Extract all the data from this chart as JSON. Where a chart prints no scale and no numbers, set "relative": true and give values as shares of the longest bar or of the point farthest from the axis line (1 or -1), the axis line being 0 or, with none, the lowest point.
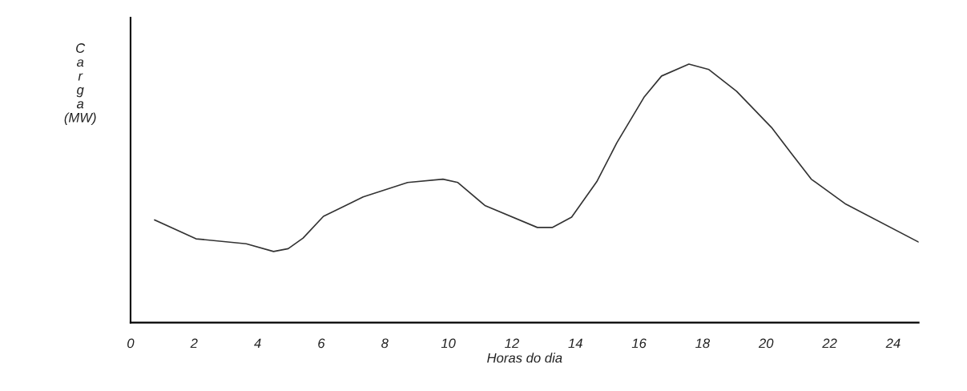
{
  "chart_data": {
    "type": "line",
    "relative": true,
    "xlabel": "Horas do dia",
    "ylabel": "Carga (MW)",
    "xlim": [
      0,
      24.8
    ],
    "xticks": [
      0,
      2,
      4,
      6,
      8,
      10,
      12,
      14,
      16,
      18,
      20,
      22,
      24
    ],
    "tick_labels": "x",
    "grid": false,
    "legend": false,
    "series": [
      {
        "color": "#333333",
        "x": [
          0.76,
          2.06,
          3.64,
          4.5,
          4.96,
          5.43,
          6.07,
          7.32,
          8.72,
          9.83,
          10.3,
          11.15,
          12.8,
          13.27,
          13.88,
          14.67,
          15.3,
          16.17,
          16.71,
          17.57,
          18.2,
          19.07,
          20.17,
          20.79,
          21.42,
          22.51,
          24.79
        ],
        "values": [
          0.397,
          0.324,
          0.305,
          0.275,
          0.286,
          0.327,
          0.411,
          0.486,
          0.542,
          0.555,
          0.542,
          0.453,
          0.368,
          0.368,
          0.408,
          0.545,
          0.695,
          0.874,
          0.954,
          1.0,
          0.979,
          0.895,
          0.755,
          0.655,
          0.555,
          0.458,
          0.312
        ]
      }
    ]
  }
}
